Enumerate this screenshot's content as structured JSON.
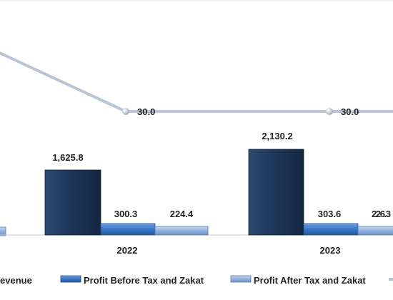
{
  "chart_data": {
    "type": "bar",
    "categories": [
      "2022",
      "2023"
    ],
    "series": [
      {
        "name": "Revenue",
        "label": "evenue",
        "values": [
          1625.8,
          2130.2
        ],
        "labels": [
          "1,625.8",
          "2,130.2"
        ],
        "color": "#1f3a5f"
      },
      {
        "name": "Profit Before Tax and Zakat",
        "values": [
          300.3,
          303.6
        ],
        "labels": [
          "300.3",
          "303.6"
        ],
        "color": "#3b78c8"
      },
      {
        "name": "Profit After Tax and Zakat",
        "values": [
          224.4,
          226.3
        ],
        "labels": [
          "224.4",
          "226.3"
        ],
        "color": "#8fb0dd"
      }
    ],
    "line_series": {
      "values": [
        30.0,
        30.0
      ],
      "labels": [
        "30.0",
        "30.0"
      ],
      "color": "#b8c4d8"
    },
    "title": "",
    "xlabel": "",
    "ylabel": "",
    "grid": false,
    "legend": "bottom"
  }
}
